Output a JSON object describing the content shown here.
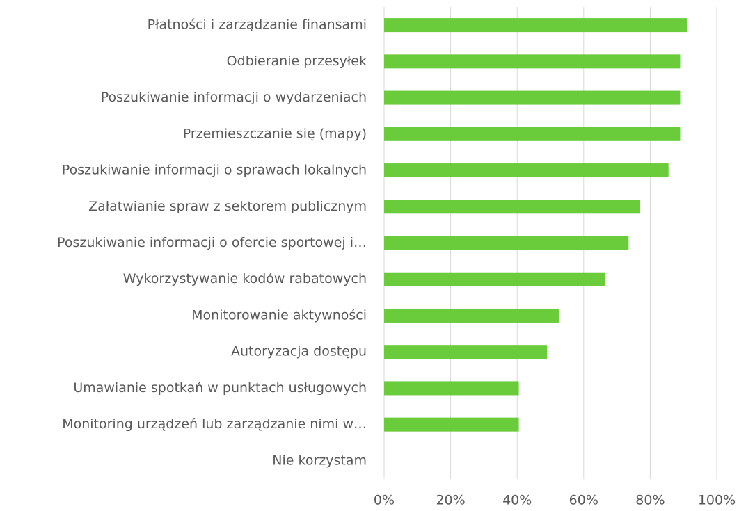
{
  "chart_data": {
    "type": "hbar",
    "categories": [
      "Płatności i zarządzanie finansami",
      "Odbieranie przesyłek",
      "Poszukiwanie informacji o wydarzeniach",
      "Przemieszczanie się (mapy)",
      "Poszukiwanie informacji o sprawach lokalnych",
      "Załatwianie spraw z sektorem publicznym",
      "Poszukiwanie informacji o ofercie sportowej i…",
      "Wykorzystywanie kodów rabatowych",
      "Monitorowanie aktywności",
      "Autoryzacja dostępu",
      "Umawianie spotkań w punktach usługowych",
      "Monitoring urządzeń lub zarządzanie nimi w…",
      "Nie korzystam"
    ],
    "values": [
      91,
      89,
      89,
      89,
      85.5,
      77,
      73.5,
      66.5,
      52.5,
      49,
      40.5,
      40.5,
      0
    ],
    "color": "#6acb3b",
    "xlim": [
      0,
      100
    ],
    "xticks": [
      {
        "value": 0,
        "label": "0%"
      },
      {
        "value": 20,
        "label": "20%"
      },
      {
        "value": 40,
        "label": "40%"
      },
      {
        "value": 60,
        "label": "60%"
      },
      {
        "value": 80,
        "label": "80%"
      },
      {
        "value": 100,
        "label": "100%"
      }
    ],
    "grid": true
  }
}
